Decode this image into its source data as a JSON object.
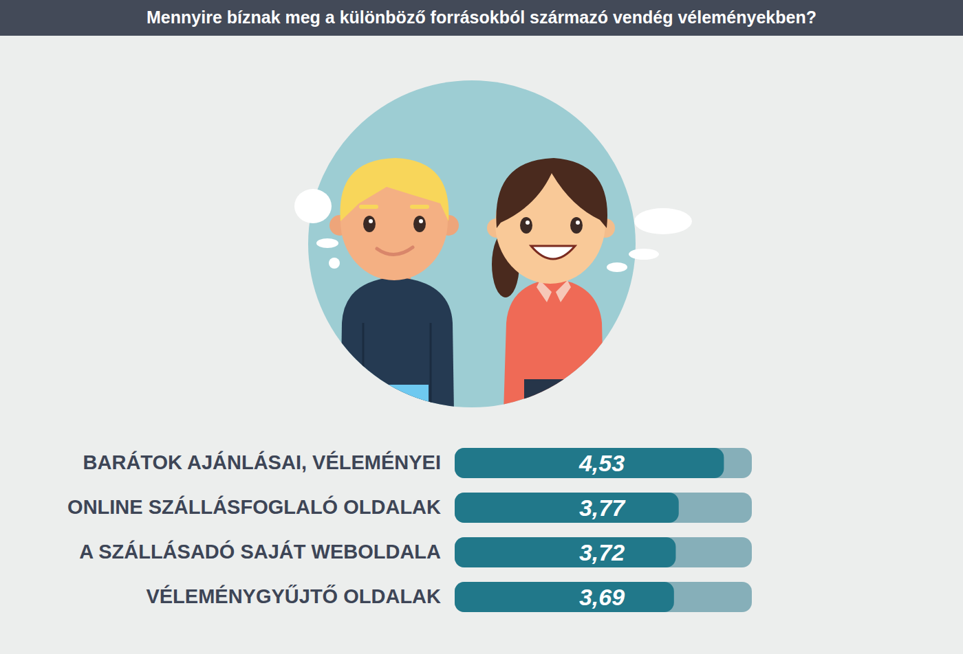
{
  "chart_data": {
    "type": "bar",
    "title": "Mennyire bíznak meg a különböző forrásokból származó vendég véleményekben?",
    "orientation": "horizontal",
    "categories": [
      "BARÁTOK AJÁNLÁSAI, VÉLEMÉNYEI",
      "ONLINE SZÁLLÁSFOGLALÓ OLDALAK",
      "A SZÁLLÁSADÓ SAJÁT WEBOLDALA",
      "VÉLEMÉNYGYŰJTŐ OLDALAK"
    ],
    "values": [
      4.53,
      3.77,
      3.72,
      3.69
    ],
    "value_labels": [
      "4,53",
      "3,77",
      "3,72",
      "3,69"
    ],
    "data_labels": true,
    "color": "#21788a",
    "xlim": [
      0,
      5
    ],
    "tick_labels": "y"
  }
}
